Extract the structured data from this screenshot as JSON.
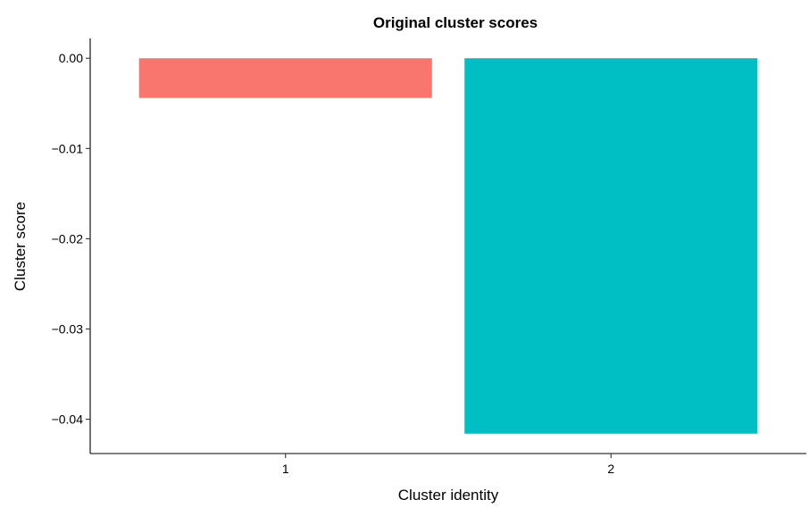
{
  "chart_data": {
    "type": "bar",
    "title": "Original cluster scores",
    "xlabel": "Cluster identity",
    "ylabel": "Cluster score",
    "categories": [
      "1",
      "2"
    ],
    "values": [
      -0.0044,
      -0.0416
    ],
    "colors": [
      "#F8766D",
      "#00BFC4"
    ],
    "ylim": [
      -0.0438,
      0.0022
    ],
    "yticks": [
      0.0,
      -0.01,
      -0.02,
      -0.03,
      -0.04
    ],
    "ytick_labels": [
      "0.00",
      "−0.01",
      "−0.02",
      "−0.03",
      "−0.04"
    ],
    "grid": false,
    "legend": "none"
  }
}
